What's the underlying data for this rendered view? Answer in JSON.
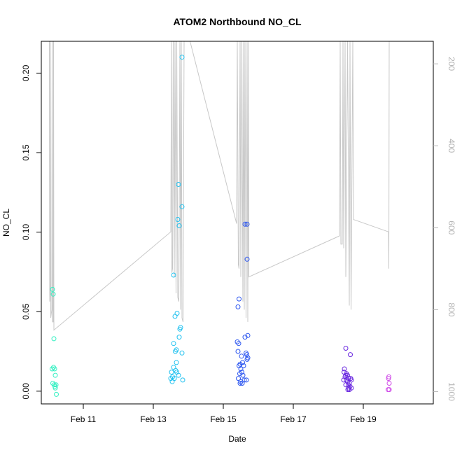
{
  "chart_data": {
    "type": "scatter",
    "title": "ATOM2 Northbound NO_CL",
    "xlabel": "Date",
    "ylabel": "NO_CL",
    "x_unit": "days (Feb, day of month)",
    "xlim": [
      9.8,
      21.0
    ],
    "ylim": [
      -0.008,
      0.22
    ],
    "x_ticks": [
      {
        "value": 11,
        "label": "Feb 11"
      },
      {
        "value": 13,
        "label": "Feb 13"
      },
      {
        "value": 15,
        "label": "Feb 15"
      },
      {
        "value": 17,
        "label": "Feb 17"
      },
      {
        "value": 19,
        "label": "Feb 19"
      }
    ],
    "y_ticks": [
      {
        "value": 0.0,
        "label": "0.00"
      },
      {
        "value": 0.05,
        "label": "0.05"
      },
      {
        "value": 0.1,
        "label": "0.10"
      },
      {
        "value": 0.15,
        "label": "0.15"
      },
      {
        "value": 0.2,
        "label": "0.20"
      }
    ],
    "secondary_axis": {
      "side": "right",
      "reversed": true,
      "range": [
        1030,
        145
      ],
      "ticks": [
        {
          "value": 200,
          "label": "200"
        },
        {
          "value": 400,
          "label": "400"
        },
        {
          "value": 600,
          "label": "600"
        },
        {
          "value": 800,
          "label": "800"
        },
        {
          "value": 1000,
          "label": "1000"
        }
      ],
      "color": "#b5b5b5"
    },
    "series": [
      {
        "color": "#33f0c2",
        "points": [
          [
            10.12,
            0.064
          ],
          [
            10.14,
            0.061
          ],
          [
            10.16,
            0.033
          ],
          [
            10.11,
            0.014
          ],
          [
            10.15,
            0.015
          ],
          [
            10.18,
            0.014
          ],
          [
            10.2,
            0.01
          ],
          [
            10.13,
            0.005
          ],
          [
            10.17,
            0.004
          ],
          [
            10.22,
            0.004
          ],
          [
            10.19,
            0.003
          ],
          [
            10.2,
            0.002
          ],
          [
            10.23,
            -0.002
          ]
        ]
      },
      {
        "color": "#22c2f0",
        "points": [
          [
            13.82,
            0.21
          ],
          [
            13.72,
            0.13
          ],
          [
            13.7,
            0.108
          ],
          [
            13.74,
            0.104
          ],
          [
            13.82,
            0.116
          ],
          [
            13.58,
            0.073
          ],
          [
            13.68,
            0.049
          ],
          [
            13.62,
            0.047
          ],
          [
            13.78,
            0.04
          ],
          [
            13.76,
            0.039
          ],
          [
            13.74,
            0.034
          ],
          [
            13.58,
            0.03
          ],
          [
            13.66,
            0.026
          ],
          [
            13.63,
            0.025
          ],
          [
            13.82,
            0.024
          ],
          [
            13.66,
            0.018
          ],
          [
            13.58,
            0.015
          ],
          [
            13.64,
            0.013
          ],
          [
            13.67,
            0.012
          ],
          [
            13.52,
            0.012
          ],
          [
            13.55,
            0.009
          ],
          [
            13.72,
            0.01
          ],
          [
            13.6,
            0.008
          ],
          [
            13.84,
            0.007
          ],
          [
            13.5,
            0.008
          ],
          [
            13.54,
            0.006
          ]
        ]
      },
      {
        "color": "#2c56f0",
        "points": [
          [
            15.62,
            0.105
          ],
          [
            15.68,
            0.105
          ],
          [
            15.68,
            0.083
          ],
          [
            15.45,
            0.058
          ],
          [
            15.42,
            0.053
          ],
          [
            15.7,
            0.035
          ],
          [
            15.62,
            0.034
          ],
          [
            15.4,
            0.031
          ],
          [
            15.44,
            0.03
          ],
          [
            15.65,
            0.024
          ],
          [
            15.42,
            0.025
          ],
          [
            15.67,
            0.023
          ],
          [
            15.7,
            0.021
          ],
          [
            15.52,
            0.022
          ],
          [
            15.68,
            0.02
          ],
          [
            15.55,
            0.018
          ],
          [
            15.48,
            0.017
          ],
          [
            15.58,
            0.016
          ],
          [
            15.45,
            0.016
          ],
          [
            15.5,
            0.014
          ],
          [
            15.53,
            0.012
          ],
          [
            15.47,
            0.011
          ],
          [
            15.56,
            0.01
          ],
          [
            15.43,
            0.008
          ],
          [
            15.6,
            0.007
          ],
          [
            15.66,
            0.007
          ],
          [
            15.5,
            0.006
          ],
          [
            15.54,
            0.005
          ],
          [
            15.48,
            0.005
          ]
        ]
      },
      {
        "color": "#6a28e0",
        "points": [
          [
            18.5,
            0.027
          ],
          [
            18.63,
            0.023
          ],
          [
            18.46,
            0.014
          ],
          [
            18.45,
            0.012
          ],
          [
            18.52,
            0.011
          ],
          [
            18.5,
            0.01
          ],
          [
            18.55,
            0.01
          ],
          [
            18.48,
            0.009
          ],
          [
            18.58,
            0.008
          ],
          [
            18.64,
            0.008
          ],
          [
            18.52,
            0.007
          ],
          [
            18.44,
            0.007
          ],
          [
            18.66,
            0.007
          ],
          [
            18.55,
            0.006
          ],
          [
            18.6,
            0.005
          ],
          [
            18.5,
            0.004
          ],
          [
            18.57,
            0.004
          ],
          [
            18.62,
            0.003
          ],
          [
            18.66,
            0.002
          ],
          [
            18.58,
            0.002
          ],
          [
            18.6,
            0.001
          ],
          [
            18.56,
            0.001
          ]
        ]
      },
      {
        "color": "#d04ee8",
        "points": [
          [
            19.73,
            0.009
          ],
          [
            19.72,
            0.008
          ],
          [
            19.74,
            0.005
          ],
          [
            19.71,
            0.001
          ],
          [
            19.74,
            0.001
          ]
        ]
      }
    ],
    "secondary_line": {
      "color": "#c8c8c8",
      "points": [
        [
          10.03,
          145
        ],
        [
          10.04,
          780
        ],
        [
          10.05,
          760
        ],
        [
          10.06,
          145
        ],
        [
          10.07,
          820
        ],
        [
          10.1,
          800
        ],
        [
          10.11,
          145
        ],
        [
          10.12,
          830
        ],
        [
          10.14,
          830
        ],
        [
          10.15,
          145
        ],
        [
          10.16,
          850
        ],
        [
          13.5,
          610
        ],
        [
          13.52,
          145
        ],
        [
          13.53,
          710
        ],
        [
          13.55,
          700
        ],
        [
          13.57,
          145
        ],
        [
          13.6,
          720
        ],
        [
          13.62,
          145
        ],
        [
          13.65,
          760
        ],
        [
          13.67,
          145
        ],
        [
          13.7,
          770
        ],
        [
          13.73,
          780
        ],
        [
          13.76,
          145
        ],
        [
          13.78,
          800
        ],
        [
          13.8,
          145
        ],
        [
          13.82,
          820
        ],
        [
          13.85,
          830
        ],
        [
          13.88,
          145
        ],
        [
          13.9,
          145
        ],
        [
          14.05,
          145
        ],
        [
          15.38,
          590
        ],
        [
          15.4,
          145
        ],
        [
          15.43,
          690
        ],
        [
          15.45,
          700
        ],
        [
          15.48,
          145
        ],
        [
          15.5,
          720
        ],
        [
          15.53,
          145
        ],
        [
          15.56,
          780
        ],
        [
          15.58,
          145
        ],
        [
          15.6,
          800
        ],
        [
          15.62,
          145
        ],
        [
          15.65,
          820
        ],
        [
          15.68,
          145
        ],
        [
          15.7,
          830
        ],
        [
          15.72,
          145
        ],
        [
          15.73,
          720
        ],
        [
          18.32,
          620
        ],
        [
          18.34,
          145
        ],
        [
          18.36,
          640
        ],
        [
          18.4,
          640
        ],
        [
          18.42,
          145
        ],
        [
          18.44,
          650
        ],
        [
          18.48,
          145
        ],
        [
          18.5,
          720
        ],
        [
          18.55,
          145
        ],
        [
          18.6,
          790
        ],
        [
          18.62,
          145
        ],
        [
          18.65,
          800
        ],
        [
          18.7,
          145
        ],
        [
          18.72,
          580
        ],
        [
          19.72,
          610
        ],
        [
          19.73,
          700
        ],
        [
          19.74,
          145
        ]
      ]
    }
  }
}
